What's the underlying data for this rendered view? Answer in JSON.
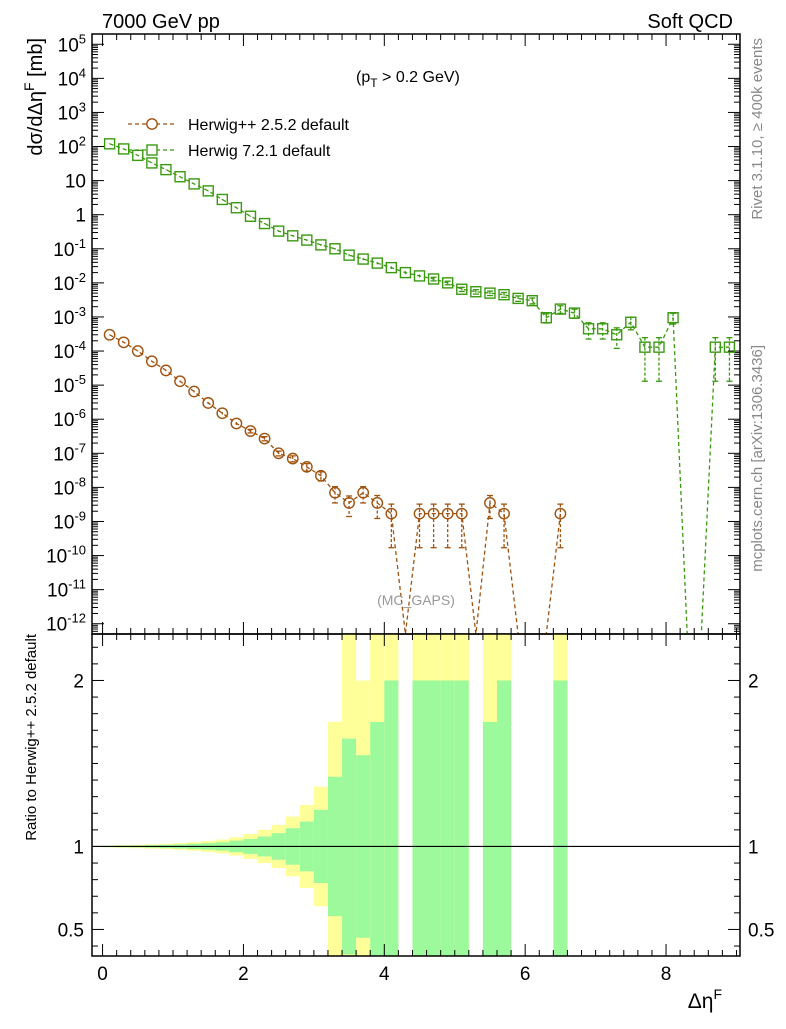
{
  "header": {
    "left": "7000 GeV pp",
    "right": "Soft QCD"
  },
  "side_labels": {
    "rivet": "Rivet 3.1.10, ≥ 400k events",
    "mcplots": "mcplots.cern.ch [arXiv:1306.3436]"
  },
  "chart_data": [
    {
      "type": "line",
      "panel": "main",
      "ylabel": "dσ/dΔηF [mb]",
      "annotation": "(pT > 0.2 GeV)",
      "watermark": "(MC_GAPS)",
      "yscale": "log",
      "ylim": [
        5e-13,
        200000.0
      ],
      "xlim": [
        -0.15,
        9.05
      ],
      "legend_position": "top-left",
      "yticks": [
        {
          "v": 100000.0,
          "label": "10^5"
        },
        {
          "v": 10000.0,
          "label": "10^4"
        },
        {
          "v": 1000.0,
          "label": "10^3"
        },
        {
          "v": 100.0,
          "label": "10^2"
        },
        {
          "v": 10,
          "label": "10"
        },
        {
          "v": 1,
          "label": "1"
        },
        {
          "v": 0.1,
          "label": "10^-1"
        },
        {
          "v": 0.01,
          "label": "10^-2"
        },
        {
          "v": 0.001,
          "label": "10^-3"
        },
        {
          "v": 0.0001,
          "label": "10^-4"
        },
        {
          "v": 1e-05,
          "label": "10^-5"
        },
        {
          "v": 1e-06,
          "label": "10^-6"
        },
        {
          "v": 1e-07,
          "label": "10^-7"
        },
        {
          "v": 1e-08,
          "label": "10^-8"
        },
        {
          "v": 1e-09,
          "label": "10^-9"
        },
        {
          "v": 1e-10,
          "label": "10^-10"
        },
        {
          "v": 1e-11,
          "label": "10^-11"
        },
        {
          "v": 1e-12,
          "label": "10^-12"
        }
      ],
      "series": [
        {
          "name": "Herwig++ 2.5.2 default",
          "color": "#a0520f",
          "marker": "circle",
          "x": [
            0.1,
            0.3,
            0.5,
            0.7,
            0.9,
            1.1,
            1.3,
            1.5,
            1.7,
            1.9,
            2.1,
            2.3,
            2.5,
            2.7,
            2.9,
            3.1,
            3.3,
            3.5,
            3.7,
            3.9,
            4.1,
            4.3,
            4.5,
            4.7,
            4.9,
            5.1,
            5.3,
            5.5,
            5.7,
            5.9,
            6.1,
            6.3,
            6.5
          ],
          "y": [
            0.0003,
            0.00018,
            0.0001,
            5e-05,
            2.7e-05,
            1.3e-05,
            6.5e-06,
            3e-06,
            1.5e-06,
            7.5e-07,
            4.5e-07,
            2.7e-07,
            1e-07,
            7e-08,
            4e-08,
            2.2e-08,
            7e-09,
            3.5e-09,
            7e-09,
            3.5e-09,
            1.7e-09,
            0,
            1.7e-09,
            1.7e-09,
            1.7e-09,
            1.7e-09,
            0,
            3.5e-09,
            1.7e-09,
            0,
            0,
            0,
            1.7e-09
          ],
          "yerr_rel": [
            0.02,
            0.02,
            0.03,
            0.03,
            0.04,
            0.05,
            0.06,
            0.07,
            0.08,
            0.1,
            0.12,
            0.14,
            0.16,
            0.2,
            0.25,
            0.3,
            0.5,
            0.6,
            0.5,
            0.65,
            0.9,
            0,
            0.9,
            0.9,
            0.9,
            0.9,
            0,
            0.65,
            0.9,
            0,
            0,
            0,
            0.9
          ]
        },
        {
          "name": "Herwig 7.2.1 default",
          "color": "#3a9a0f",
          "marker": "square",
          "x": [
            0.1,
            0.3,
            0.5,
            0.7,
            0.9,
            1.1,
            1.3,
            1.5,
            1.7,
            1.9,
            2.1,
            2.3,
            2.5,
            2.7,
            2.9,
            3.1,
            3.3,
            3.5,
            3.7,
            3.9,
            4.1,
            4.3,
            4.5,
            4.7,
            4.9,
            5.1,
            5.3,
            5.5,
            5.7,
            5.9,
            6.1,
            6.3,
            6.5,
            6.7,
            6.9,
            7.1,
            7.3,
            7.5,
            7.7,
            7.9,
            8.1,
            8.3,
            8.5,
            8.7,
            8.9
          ],
          "y": [
            120,
            85,
            55,
            33,
            21,
            13,
            8,
            5,
            2.8,
            1.6,
            0.9,
            0.55,
            0.33,
            0.24,
            0.18,
            0.13,
            0.1,
            0.065,
            0.05,
            0.038,
            0.028,
            0.02,
            0.016,
            0.013,
            0.01,
            0.0065,
            0.0055,
            0.005,
            0.0045,
            0.0035,
            0.003,
            0.00095,
            0.0017,
            0.0013,
            0.00045,
            0.00045,
            0.0003,
            0.0007,
            0.00013,
            0.00013,
            0.00095,
            0,
            0,
            0.00013,
            0.00013
          ],
          "yerr_rel": [
            0.02,
            0.02,
            0.02,
            0.02,
            0.02,
            0.02,
            0.02,
            0.03,
            0.03,
            0.03,
            0.03,
            0.04,
            0.04,
            0.05,
            0.05,
            0.06,
            0.06,
            0.07,
            0.08,
            0.08,
            0.09,
            0.1,
            0.1,
            0.12,
            0.12,
            0.14,
            0.15,
            0.15,
            0.16,
            0.18,
            0.2,
            0.3,
            0.25,
            0.3,
            0.5,
            0.5,
            0.6,
            0.4,
            0.9,
            0.9,
            0.35,
            0,
            0,
            0.9,
            0.9
          ]
        }
      ]
    },
    {
      "type": "area",
      "panel": "ratio",
      "ylabel": "Ratio to Herwig++ 2.5.2 default",
      "xlabel": "ΔηF",
      "ylim": [
        0.34,
        2.28
      ],
      "xlim": [
        -0.15,
        9.05
      ],
      "yticks": [
        {
          "v": 0.5,
          "label": "0.5"
        },
        {
          "v": 1,
          "label": "1"
        },
        {
          "v": 2,
          "label": "2"
        }
      ],
      "xticks": [
        {
          "v": 0,
          "label": "0"
        },
        {
          "v": 2,
          "label": "2"
        },
        {
          "v": 4,
          "label": "4"
        },
        {
          "v": 6,
          "label": "6"
        },
        {
          "v": 8,
          "label": "8"
        }
      ],
      "reference_line": 1,
      "band_colors": {
        "inner": "#9cf99c",
        "outer": "#ffff99"
      },
      "bin_edges": [
        0.0,
        0.2,
        0.4,
        0.6,
        0.8,
        1.0,
        1.2,
        1.4,
        1.6,
        1.8,
        2.0,
        2.2,
        2.4,
        2.6,
        2.8,
        3.0,
        3.2,
        3.4,
        3.6,
        3.8,
        4.0,
        4.2,
        4.4,
        4.6,
        4.8,
        5.0,
        5.2,
        5.4,
        5.6,
        5.8,
        6.0,
        6.2,
        6.4,
        6.6
      ],
      "inner_err": [
        0.004,
        0.005,
        0.006,
        0.008,
        0.01,
        0.012,
        0.016,
        0.02,
        0.025,
        0.035,
        0.045,
        0.06,
        0.08,
        0.11,
        0.15,
        0.22,
        0.42,
        0.65,
        0.55,
        0.75,
        1.0,
        0,
        1.0,
        1.0,
        1.0,
        1.0,
        0,
        0.75,
        1.0,
        0,
        0,
        0,
        1.0
      ],
      "outer_err": [
        0.006,
        0.008,
        0.01,
        0.013,
        0.016,
        0.02,
        0.026,
        0.033,
        0.042,
        0.055,
        0.075,
        0.1,
        0.13,
        0.18,
        0.25,
        0.36,
        0.75,
        1.3,
        1.0,
        1.3,
        1.5,
        0,
        1.5,
        1.5,
        1.5,
        1.5,
        0,
        1.3,
        1.5,
        0,
        0,
        0,
        1.5
      ]
    }
  ]
}
